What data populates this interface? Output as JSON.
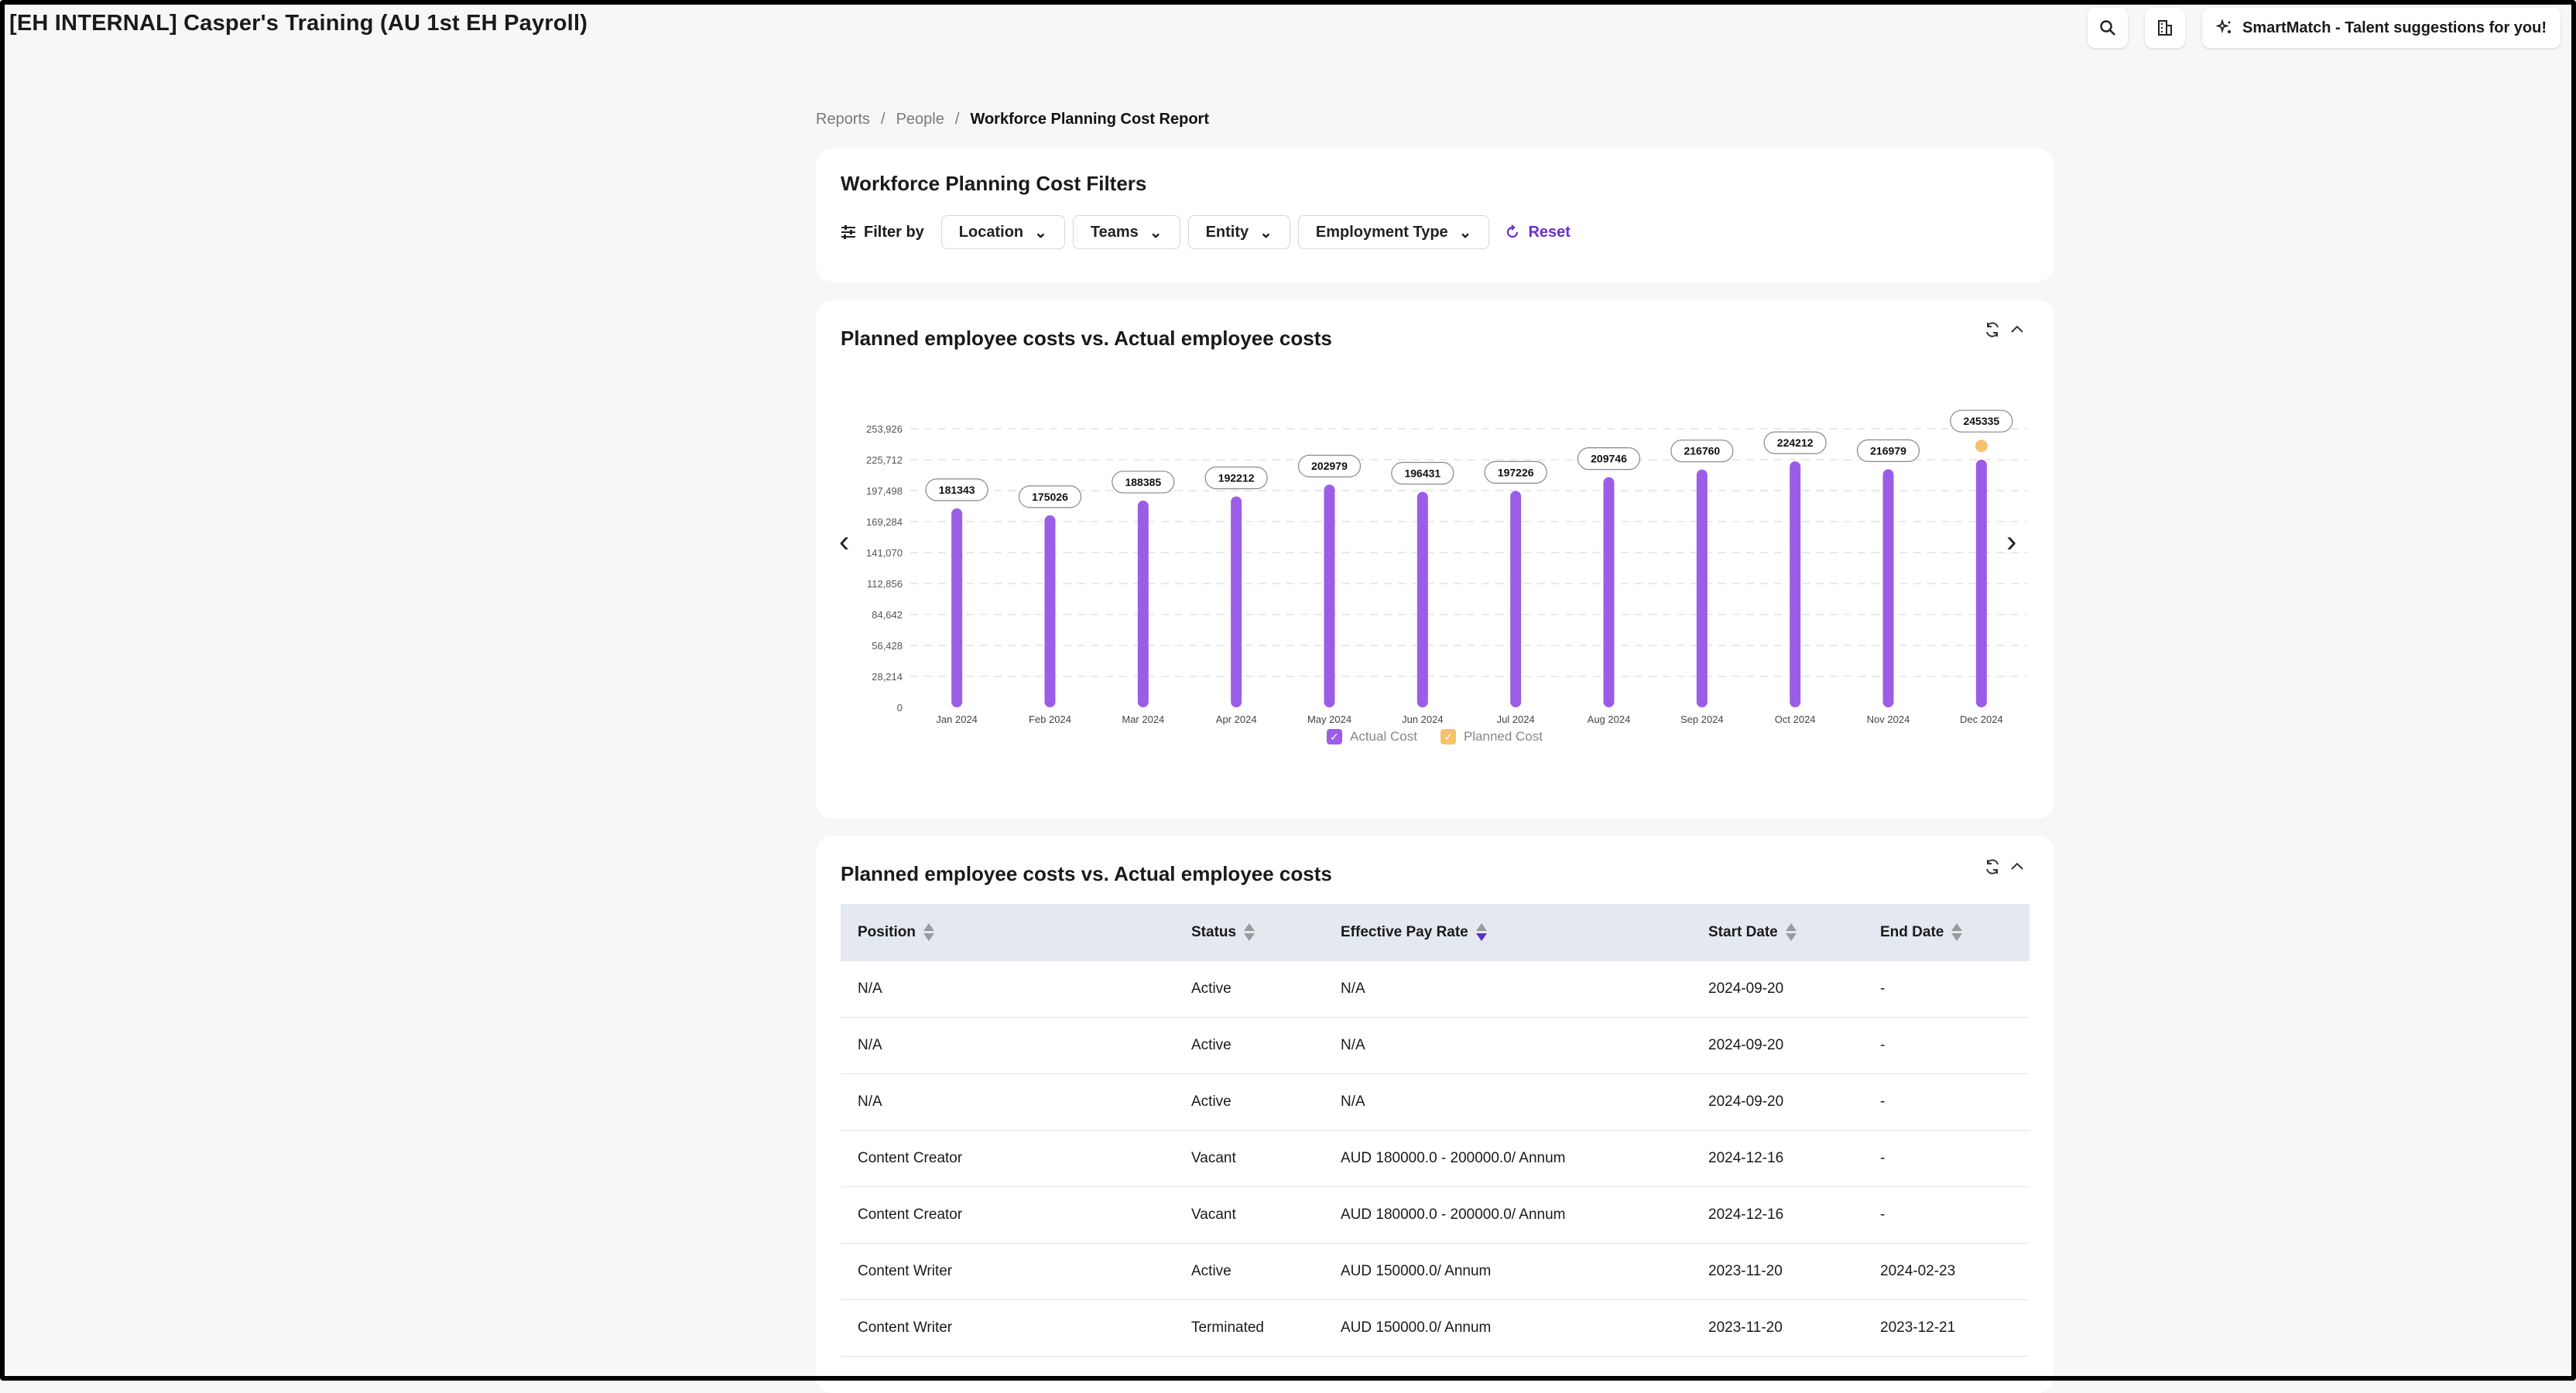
{
  "app": {
    "title": "[EH INTERNAL] Casper's Training (AU 1st EH Payroll)"
  },
  "header": {
    "smartmatch_label": "SmartMatch - Talent suggestions for you!",
    "icons": [
      "search-icon",
      "building-icon",
      "sparkle-icon"
    ]
  },
  "breadcrumb": {
    "items": [
      "Reports",
      "People",
      "Workforce Planning Cost Report"
    ]
  },
  "filters": {
    "title": "Workforce Planning Cost Filters",
    "filter_by_label": "Filter by",
    "dropdowns": [
      "Location",
      "Teams",
      "Entity",
      "Employment Type"
    ],
    "reset_label": "Reset"
  },
  "chart_section": {
    "title": "Planned employee costs vs. Actual employee costs"
  },
  "chart_data": {
    "type": "bar",
    "categories": [
      "Jan 2024",
      "Feb 2024",
      "Mar 2024",
      "Apr 2024",
      "May 2024",
      "Jun 2024",
      "Jul 2024",
      "Aug 2024",
      "Sep 2024",
      "Oct 2024",
      "Nov 2024",
      "Dec 2024"
    ],
    "series": [
      {
        "name": "Actual Cost",
        "color": "#9b5de5",
        "values": [
          181343,
          175026,
          188385,
          192212,
          202979,
          196431,
          197226,
          209746,
          216760,
          224212,
          216979,
          225712
        ]
      },
      {
        "name": "Planned Cost",
        "color": "#f5c26b",
        "values": [
          null,
          null,
          null,
          null,
          null,
          null,
          null,
          null,
          null,
          null,
          null,
          245335
        ]
      }
    ],
    "data_labels": [
      "181343",
      "175026",
      "188385",
      "192212",
      "202979",
      "196431",
      "197226",
      "209746",
      "216760",
      "224212",
      "216979",
      "245335"
    ],
    "y_ticks": [
      "0",
      "28,214",
      "56,428",
      "84,642",
      "112,856",
      "141,070",
      "169,284",
      "197,498",
      "225,712",
      "253,926"
    ],
    "ylim": [
      0,
      253926
    ],
    "grid": true,
    "legend_position": "bottom"
  },
  "table_section": {
    "title": "Planned employee costs vs. Actual employee costs",
    "columns": [
      "Position",
      "Status",
      "Effective Pay Rate",
      "Start Date",
      "End Date"
    ],
    "rows": [
      [
        "N/A",
        "Active",
        "N/A",
        "2024-09-20",
        "-"
      ],
      [
        "N/A",
        "Active",
        "N/A",
        "2024-09-20",
        "-"
      ],
      [
        "N/A",
        "Active",
        "N/A",
        "2024-09-20",
        "-"
      ],
      [
        "Content Creator",
        "Vacant",
        "AUD 180000.0 - 200000.0/ Annum",
        "2024-12-16",
        "-"
      ],
      [
        "Content Creator",
        "Vacant",
        "AUD 180000.0 - 200000.0/ Annum",
        "2024-12-16",
        "-"
      ],
      [
        "Content Writer",
        "Active",
        "AUD 150000.0/ Annum",
        "2023-11-20",
        "2024-02-23"
      ],
      [
        "Content Writer",
        "Terminated",
        "AUD 150000.0/ Annum",
        "2023-11-20",
        "2023-12-21"
      ]
    ]
  }
}
